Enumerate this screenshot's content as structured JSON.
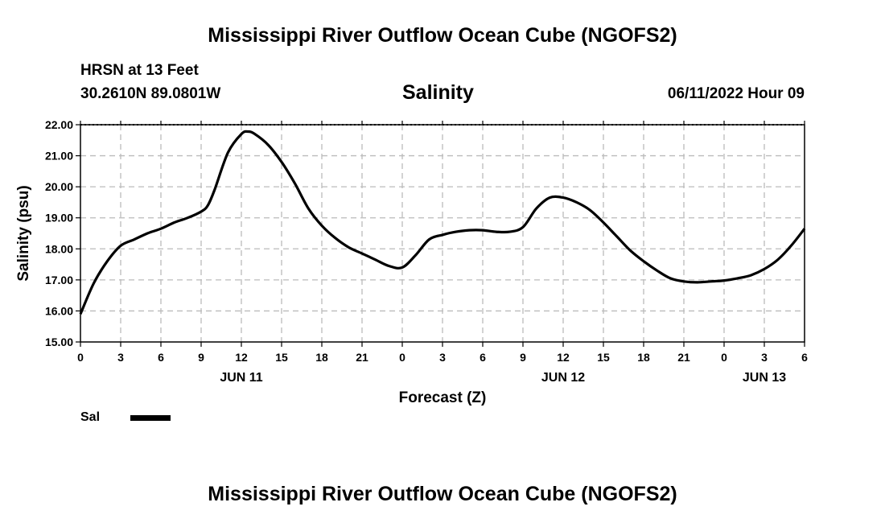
{
  "header": {
    "main_title": "Mississippi River Outflow Ocean Cube (NGOFS2)",
    "station": "HRSN at 13 Feet",
    "coords": "30.2610N  89.0801W",
    "chart_title": "Salinity",
    "datetime": "06/11/2022 Hour 09"
  },
  "footer": {
    "main_title": "Mississippi River Outflow Ocean Cube (NGOFS2)"
  },
  "legend": {
    "label": "Sal"
  },
  "colors": {
    "line": "#000000",
    "grid": "#bbbbbb",
    "background": "#ffffff"
  },
  "chart_data": {
    "type": "line",
    "title": "Salinity",
    "xlabel": "Forecast (Z)",
    "ylabel": "Salinity (psu)",
    "xlim": [
      0,
      54
    ],
    "ylim": [
      15,
      22
    ],
    "x_ticks": [
      0,
      3,
      6,
      9,
      12,
      15,
      18,
      21,
      24,
      27,
      30,
      33,
      36,
      39,
      42,
      45,
      48,
      51,
      54
    ],
    "x_tick_labels": [
      "0",
      "3",
      "6",
      "9",
      "12",
      "15",
      "18",
      "21",
      "0",
      "3",
      "6",
      "9",
      "12",
      "15",
      "18",
      "21",
      "0",
      "3",
      "6"
    ],
    "y_ticks": [
      15,
      16,
      17,
      18,
      19,
      20,
      21,
      22
    ],
    "y_tick_labels": [
      "15.00",
      "16.00",
      "17.00",
      "18.00",
      "19.00",
      "20.00",
      "21.00",
      "22.00"
    ],
    "day_labels": [
      {
        "x": 12,
        "label": "JUN 11"
      },
      {
        "x": 36,
        "label": "JUN 12"
      },
      {
        "x": 51,
        "label": "JUN 13"
      }
    ],
    "grid": true,
    "legend_position": "bottom-left",
    "series": [
      {
        "name": "Sal",
        "x": [
          0,
          1,
          2,
          3,
          4,
          5,
          6,
          7,
          8,
          9,
          9.5,
          10,
          11,
          12,
          12.5,
          13,
          14,
          15,
          16,
          17,
          18,
          19,
          20,
          21,
          22,
          23,
          24,
          25,
          26,
          27,
          28,
          29,
          30,
          31,
          32,
          33,
          34,
          35,
          36,
          37,
          38,
          39,
          40,
          41,
          42,
          43,
          44,
          45,
          46,
          47,
          48,
          49,
          50,
          51,
          52,
          53,
          54
        ],
        "y": [
          15.9,
          16.9,
          17.6,
          18.1,
          18.3,
          18.5,
          18.65,
          18.85,
          19.0,
          19.2,
          19.4,
          19.9,
          21.1,
          21.7,
          21.78,
          21.7,
          21.35,
          20.8,
          20.1,
          19.3,
          18.75,
          18.35,
          18.05,
          17.85,
          17.65,
          17.45,
          17.4,
          17.8,
          18.3,
          18.45,
          18.55,
          18.6,
          18.6,
          18.55,
          18.55,
          18.7,
          19.3,
          19.65,
          19.65,
          19.5,
          19.25,
          18.85,
          18.4,
          17.95,
          17.6,
          17.3,
          17.05,
          16.95,
          16.92,
          16.95,
          16.98,
          17.05,
          17.15,
          17.35,
          17.65,
          18.1,
          18.65
        ]
      }
    ]
  }
}
